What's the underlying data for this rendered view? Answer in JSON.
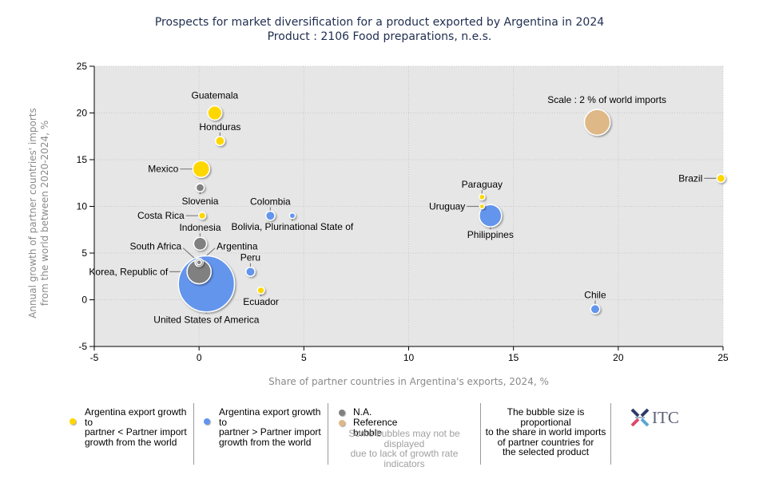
{
  "title": {
    "line1": "Prospects for market diversification for a product exported by Argentina in 2024",
    "line2": "Product : 2106 Food preparations, n.e.s."
  },
  "colors": {
    "lower_growth": "#FFD700",
    "higher_growth": "#6495ED",
    "na": "#808080",
    "reference": "#DEB887",
    "plot_bg": "#E6E6E6",
    "title": "#1f2d4f",
    "axis_label": "#8a8a8a"
  },
  "chart_data": {
    "type": "scatter",
    "subtype": "bubble",
    "title": "Prospects for market diversification for a product exported by Argentina in 2024",
    "subtitle": "Product : 2106 Food preparations, n.e.s.",
    "xlabel": "Share of partner countries in Argentina's exports, 2024, %",
    "ylabel": "Annual growth of partner countries' imports from the world between 2020-2024, %",
    "xlim": [
      -5,
      25
    ],
    "ylim": [
      -5,
      25
    ],
    "xticks": [
      -5,
      0,
      5,
      10,
      15,
      20,
      25
    ],
    "yticks": [
      -5,
      0,
      5,
      10,
      15,
      20,
      25
    ],
    "grid": true,
    "bubble_size_meaning": "share in world imports, %",
    "points": [
      {
        "name": "Guatemala",
        "x": 0.75,
        "y": 20,
        "size": 0.6,
        "category": "lower",
        "label_pos": "top"
      },
      {
        "name": "Honduras",
        "x": 1.0,
        "y": 17,
        "size": 0.25,
        "category": "lower",
        "label_pos": "top"
      },
      {
        "name": "Mexico",
        "x": 0.1,
        "y": 14,
        "size": 0.85,
        "category": "lower",
        "label_pos": "left"
      },
      {
        "name": "Slovenia",
        "x": 0.05,
        "y": 12,
        "size": 0.2,
        "category": "na",
        "label_pos": "bottom"
      },
      {
        "name": "Costa Rica",
        "x": 0.15,
        "y": 9,
        "size": 0.15,
        "category": "lower",
        "label_pos": "left"
      },
      {
        "name": "Indonesia",
        "x": 0.05,
        "y": 6,
        "size": 0.5,
        "category": "na",
        "label_pos": "top"
      },
      {
        "name": "South Africa",
        "x": 0.0,
        "y": 4,
        "size": 0.2,
        "category": "na",
        "label_pos": "top-left"
      },
      {
        "name": "Argentina",
        "x": 0.0,
        "y": 4,
        "size": 0.07,
        "category": "na",
        "label_pos": "top-right"
      },
      {
        "name": "Korea, Republic of",
        "x": 0.0,
        "y": 3,
        "size": 1.75,
        "category": "na",
        "label_pos": "left"
      },
      {
        "name": "United States of America",
        "x": 0.35,
        "y": 1.7,
        "size": 9.5,
        "category": "higher",
        "label_pos": "bottom"
      },
      {
        "name": "Colombia",
        "x": 3.4,
        "y": 9,
        "size": 0.25,
        "category": "higher",
        "label_pos": "top"
      },
      {
        "name": "Bolivia, Plurinational State of",
        "x": 4.45,
        "y": 9,
        "size": 0.1,
        "category": "higher",
        "label_pos": "bottom"
      },
      {
        "name": "Peru",
        "x": 2.45,
        "y": 3,
        "size": 0.25,
        "category": "higher",
        "label_pos": "top"
      },
      {
        "name": "Ecuador",
        "x": 2.95,
        "y": 1,
        "size": 0.15,
        "category": "lower",
        "label_pos": "bottom"
      },
      {
        "name": "Paraguay",
        "x": 13.5,
        "y": 11,
        "size": 0.1,
        "category": "lower",
        "label_pos": "top"
      },
      {
        "name": "Uruguay",
        "x": 13.5,
        "y": 10,
        "size": 0.07,
        "category": "lower",
        "label_pos": "left"
      },
      {
        "name": "Philippines",
        "x": 13.9,
        "y": 9,
        "size": 1.5,
        "category": "higher",
        "label_pos": "bottom"
      },
      {
        "name": "Brazil",
        "x": 24.9,
        "y": 13,
        "size": 0.2,
        "category": "lower",
        "label_pos": "left"
      },
      {
        "name": "Chile",
        "x": 18.9,
        "y": -1,
        "size": 0.25,
        "category": "higher",
        "label_pos": "top"
      }
    ],
    "reference_bubble": {
      "label": "Scale : 2 % of world imports",
      "x": 19.0,
      "y": 19,
      "size": 2
    }
  },
  "legend": {
    "lower": "Argentina export growth to partner < Partner import growth from the world",
    "lower_lines": [
      "Argentina export growth to",
      "partner < Partner import",
      "growth from the world"
    ],
    "higher_lines": [
      "Argentina export growth to",
      "partner > Partner import",
      "growth from the world"
    ],
    "na": "N.A.",
    "reference": "Reference bubble",
    "note_lines": [
      "Some bubbles may not be displayed",
      "due to lack of growth rate",
      "indicators"
    ],
    "size_note_lines": [
      "The bubble size is proportional",
      "to the share in world imports",
      "of partner countries for",
      "the selected product"
    ],
    "logo_text": "ITC"
  }
}
